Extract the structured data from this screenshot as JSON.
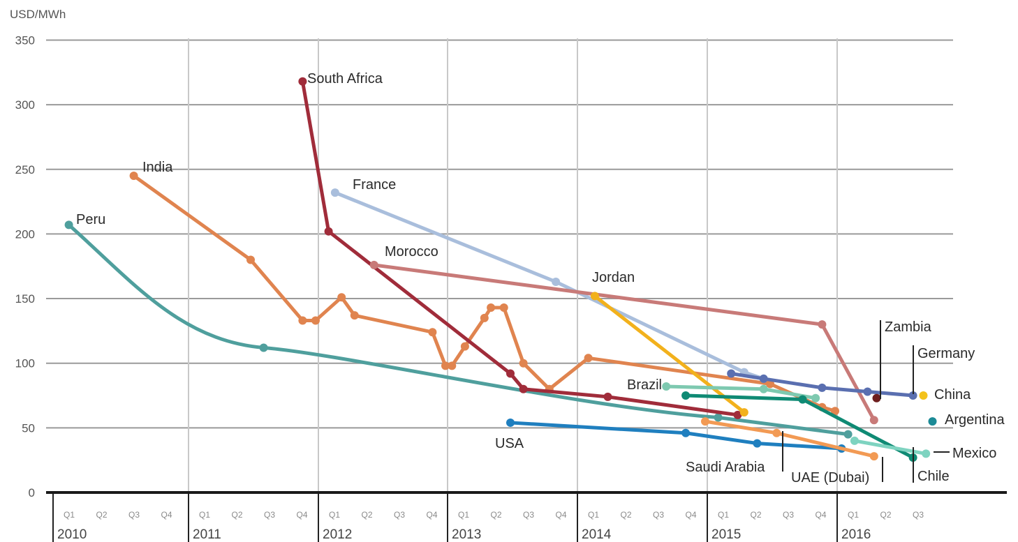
{
  "chart_data": {
    "type": "line",
    "ylabel": "USD/MWh",
    "ylim": [
      0,
      350
    ],
    "y_ticks": [
      0,
      50,
      100,
      150,
      200,
      250,
      300,
      350
    ],
    "x_axis": {
      "years": [
        "2010",
        "2011",
        "2012",
        "2013",
        "2014",
        "2015",
        "2016"
      ],
      "quarters": [
        "Q1",
        "Q2",
        "Q3",
        "Q4"
      ],
      "year_quarters_shown": [
        4,
        4,
        4,
        4,
        4,
        4,
        3
      ]
    },
    "grid": true,
    "series": [
      {
        "name": "Peru",
        "color": "#4f9f9d",
        "x": [
          2010.1,
          2011.6,
          2015.1,
          2016.1
        ],
        "y": [
          207,
          112,
          58,
          45
        ]
      },
      {
        "name": "India",
        "color": "#e0844f",
        "x": [
          2010.6,
          2011.5,
          2011.9,
          2012.0,
          2012.2,
          2012.3,
          2012.9,
          2013.0,
          2013.05,
          2013.15,
          2013.3,
          2013.35,
          2013.45,
          2013.6,
          2013.8,
          2014.1,
          2015.5,
          2015.9,
          2016.0
        ],
        "y": [
          245,
          180,
          133,
          133,
          151,
          137,
          124,
          98,
          98,
          113,
          135,
          143,
          143,
          100,
          80,
          104,
          84,
          66,
          63
        ]
      },
      {
        "name": "South Africa",
        "color": "#a02c3a",
        "x": [
          2011.9,
          2012.1,
          2013.5,
          2013.6,
          2014.25,
          2015.25
        ],
        "y": [
          318,
          202,
          92,
          80,
          74,
          60
        ]
      },
      {
        "name": "France",
        "color": "#a9bedc",
        "x": [
          2012.15,
          2013.85,
          2015.3,
          2015.45
        ],
        "y": [
          232,
          163,
          93,
          88
        ]
      },
      {
        "name": "Morocco",
        "color": "#c87a78",
        "x": [
          2012.45,
          2015.9,
          2016.3
        ],
        "y": [
          176,
          130,
          56
        ]
      },
      {
        "name": "Jordan",
        "color": "#f2b11c",
        "x": [
          2014.15,
          2015.3
        ],
        "y": [
          152,
          62
        ]
      },
      {
        "name": "Brazil",
        "color": "#7ec9b0",
        "x": [
          2014.7,
          2015.45,
          2015.85
        ],
        "y": [
          82,
          80,
          73
        ]
      },
      {
        "name": "USA",
        "color": "#1f7fbf",
        "x": [
          2013.5,
          2014.85,
          2015.4,
          2016.05
        ],
        "y": [
          54,
          46,
          38,
          34
        ]
      },
      {
        "name": "Saudi Arabia",
        "color": "#f29a54",
        "x": [
          2015.0,
          2015.55,
          2016.3
        ],
        "y": [
          55,
          46,
          28
        ]
      },
      {
        "name": "Germany",
        "color": "#5a6fb0",
        "x": [
          2015.2,
          2015.45,
          2015.9,
          2016.25,
          2016.6
        ],
        "y": [
          92,
          88,
          81,
          78,
          75
        ]
      },
      {
        "name": "Chile",
        "color": "#0f8a74",
        "x": [
          2014.85,
          2015.75,
          2016.6
        ],
        "y": [
          75,
          72,
          27
        ]
      },
      {
        "name": "Mexico",
        "color": "#7ed3c0",
        "x": [
          2016.15,
          2016.7
        ],
        "y": [
          40,
          30
        ]
      },
      {
        "name": "Zambia",
        "color": "#6e1e1e",
        "x": [
          2016.32
        ],
        "y": [
          73
        ]
      },
      {
        "name": "China",
        "color": "#f3c21c",
        "x": [
          2016.68
        ],
        "y": [
          75
        ]
      },
      {
        "name": "Argentina",
        "color": "#1b8a96",
        "x": [
          2016.75
        ],
        "y": [
          55
        ]
      },
      {
        "name": "UAE (Dubai)",
        "color": "#e0844f",
        "x": [],
        "y": []
      }
    ]
  }
}
